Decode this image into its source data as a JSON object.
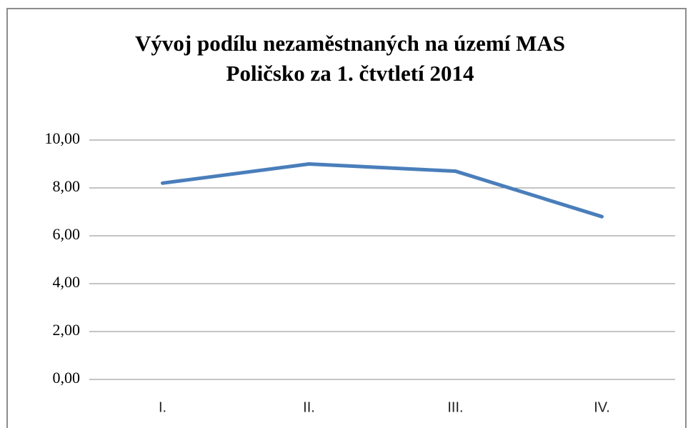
{
  "chart_data": {
    "type": "line",
    "title": "Vývoj podílu nezaměstnaných na území MAS Poličsko za 1. čtvtletí 2014",
    "categories": [
      "I.",
      "II.",
      "III.",
      "IV."
    ],
    "series": [
      {
        "color": "#4a7ebb",
        "values": [
          8.2,
          9.0,
          8.7,
          6.8
        ]
      }
    ],
    "ylim": [
      0,
      10
    ],
    "yticks": [
      {
        "value": 0,
        "label": "0,00"
      },
      {
        "value": 2,
        "label": "2,00"
      },
      {
        "value": 4,
        "label": "4,00"
      },
      {
        "value": 6,
        "label": "6,00"
      },
      {
        "value": 8,
        "label": "8,00"
      },
      {
        "value": 10,
        "label": "10,00"
      }
    ],
    "grid": true
  }
}
